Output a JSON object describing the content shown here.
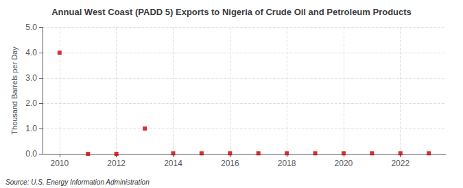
{
  "chart_data": {
    "type": "scatter",
    "title": "Annual West Coast (PADD 5) Exports to Nigeria of Crude Oil and Petroleum Products",
    "ylabel": "Thousand Barrels per Day",
    "source": "Source: U.S. Energy Information Administration",
    "x": [
      2010,
      2011,
      2012,
      2013,
      2014,
      2015,
      2016,
      2017,
      2018,
      2019,
      2020,
      2021,
      2022,
      2023
    ],
    "values": [
      4.0,
      0.0,
      0.0,
      1.0,
      0.02,
      0.02,
      0.02,
      0.02,
      0.02,
      0.02,
      0.02,
      0.02,
      0.02,
      0.02
    ],
    "color": "#cc0000",
    "marker": "square",
    "xlim": [
      2009.4,
      2023.6
    ],
    "xticks": [
      2010,
      2012,
      2014,
      2016,
      2018,
      2020,
      2022
    ],
    "ylim": [
      0.0,
      5.0
    ],
    "yticks": [
      {
        "value": 0.0,
        "label": "0.0"
      },
      {
        "value": 1.0,
        "label": "1.0"
      },
      {
        "value": 2.0,
        "label": "2.0"
      },
      {
        "value": 3.0,
        "label": "3.0"
      },
      {
        "value": 4.0,
        "label": "4.0"
      },
      {
        "value": 5.0,
        "label": "5.0"
      }
    ],
    "grid": true
  }
}
